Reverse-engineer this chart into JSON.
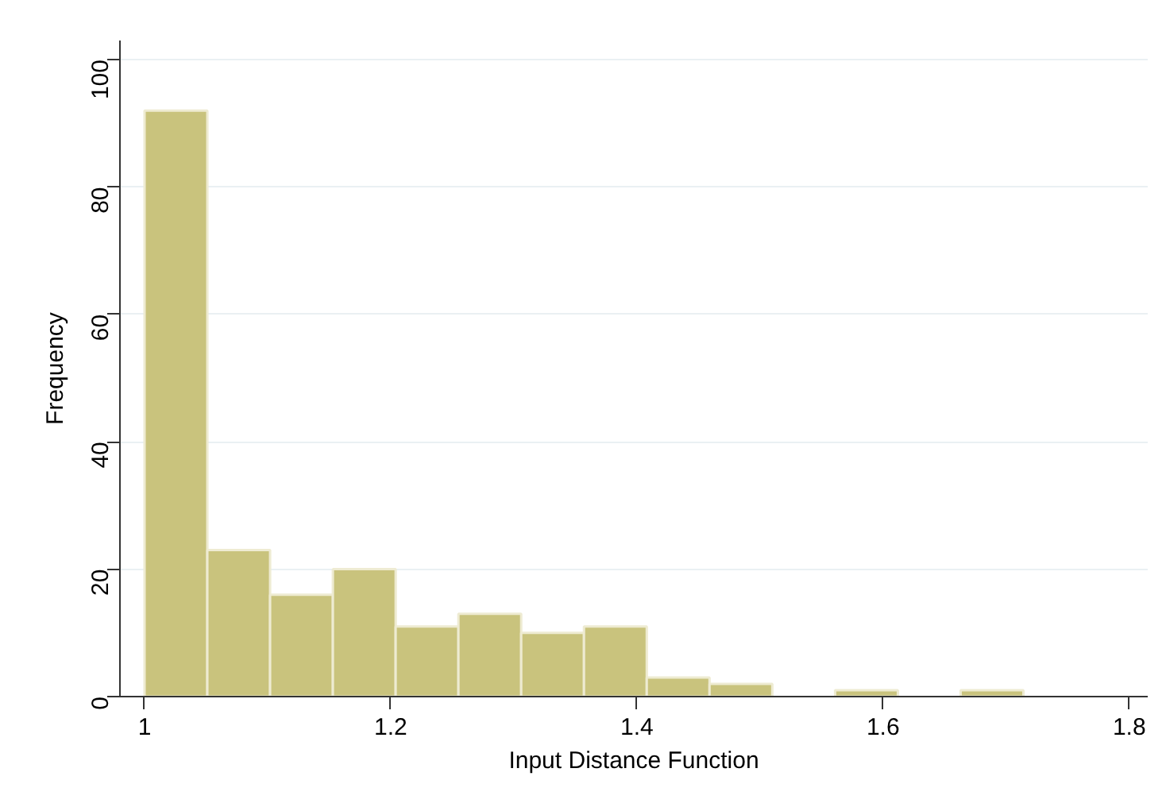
{
  "chart_data": {
    "type": "histogram",
    "xlabel": "Input Distance Function",
    "ylabel": "Frequency",
    "bins": [
      1.0,
      1.051,
      1.102,
      1.153,
      1.204,
      1.255,
      1.306,
      1.357,
      1.408,
      1.459,
      1.51,
      1.561,
      1.612,
      1.663,
      1.714
    ],
    "values": [
      92,
      23,
      16,
      20,
      11,
      13,
      10,
      11,
      3,
      2,
      0,
      1,
      0,
      1
    ],
    "color": "#c9c37d",
    "xlim": [
      0.98,
      1.815
    ],
    "ylim": [
      0,
      103
    ],
    "xticks": [
      {
        "value": 1,
        "label": "1"
      },
      1.2,
      1.4,
      1.6,
      1.8
    ],
    "yticks": [
      0,
      20,
      40,
      60,
      80,
      100
    ],
    "grid": "y"
  }
}
